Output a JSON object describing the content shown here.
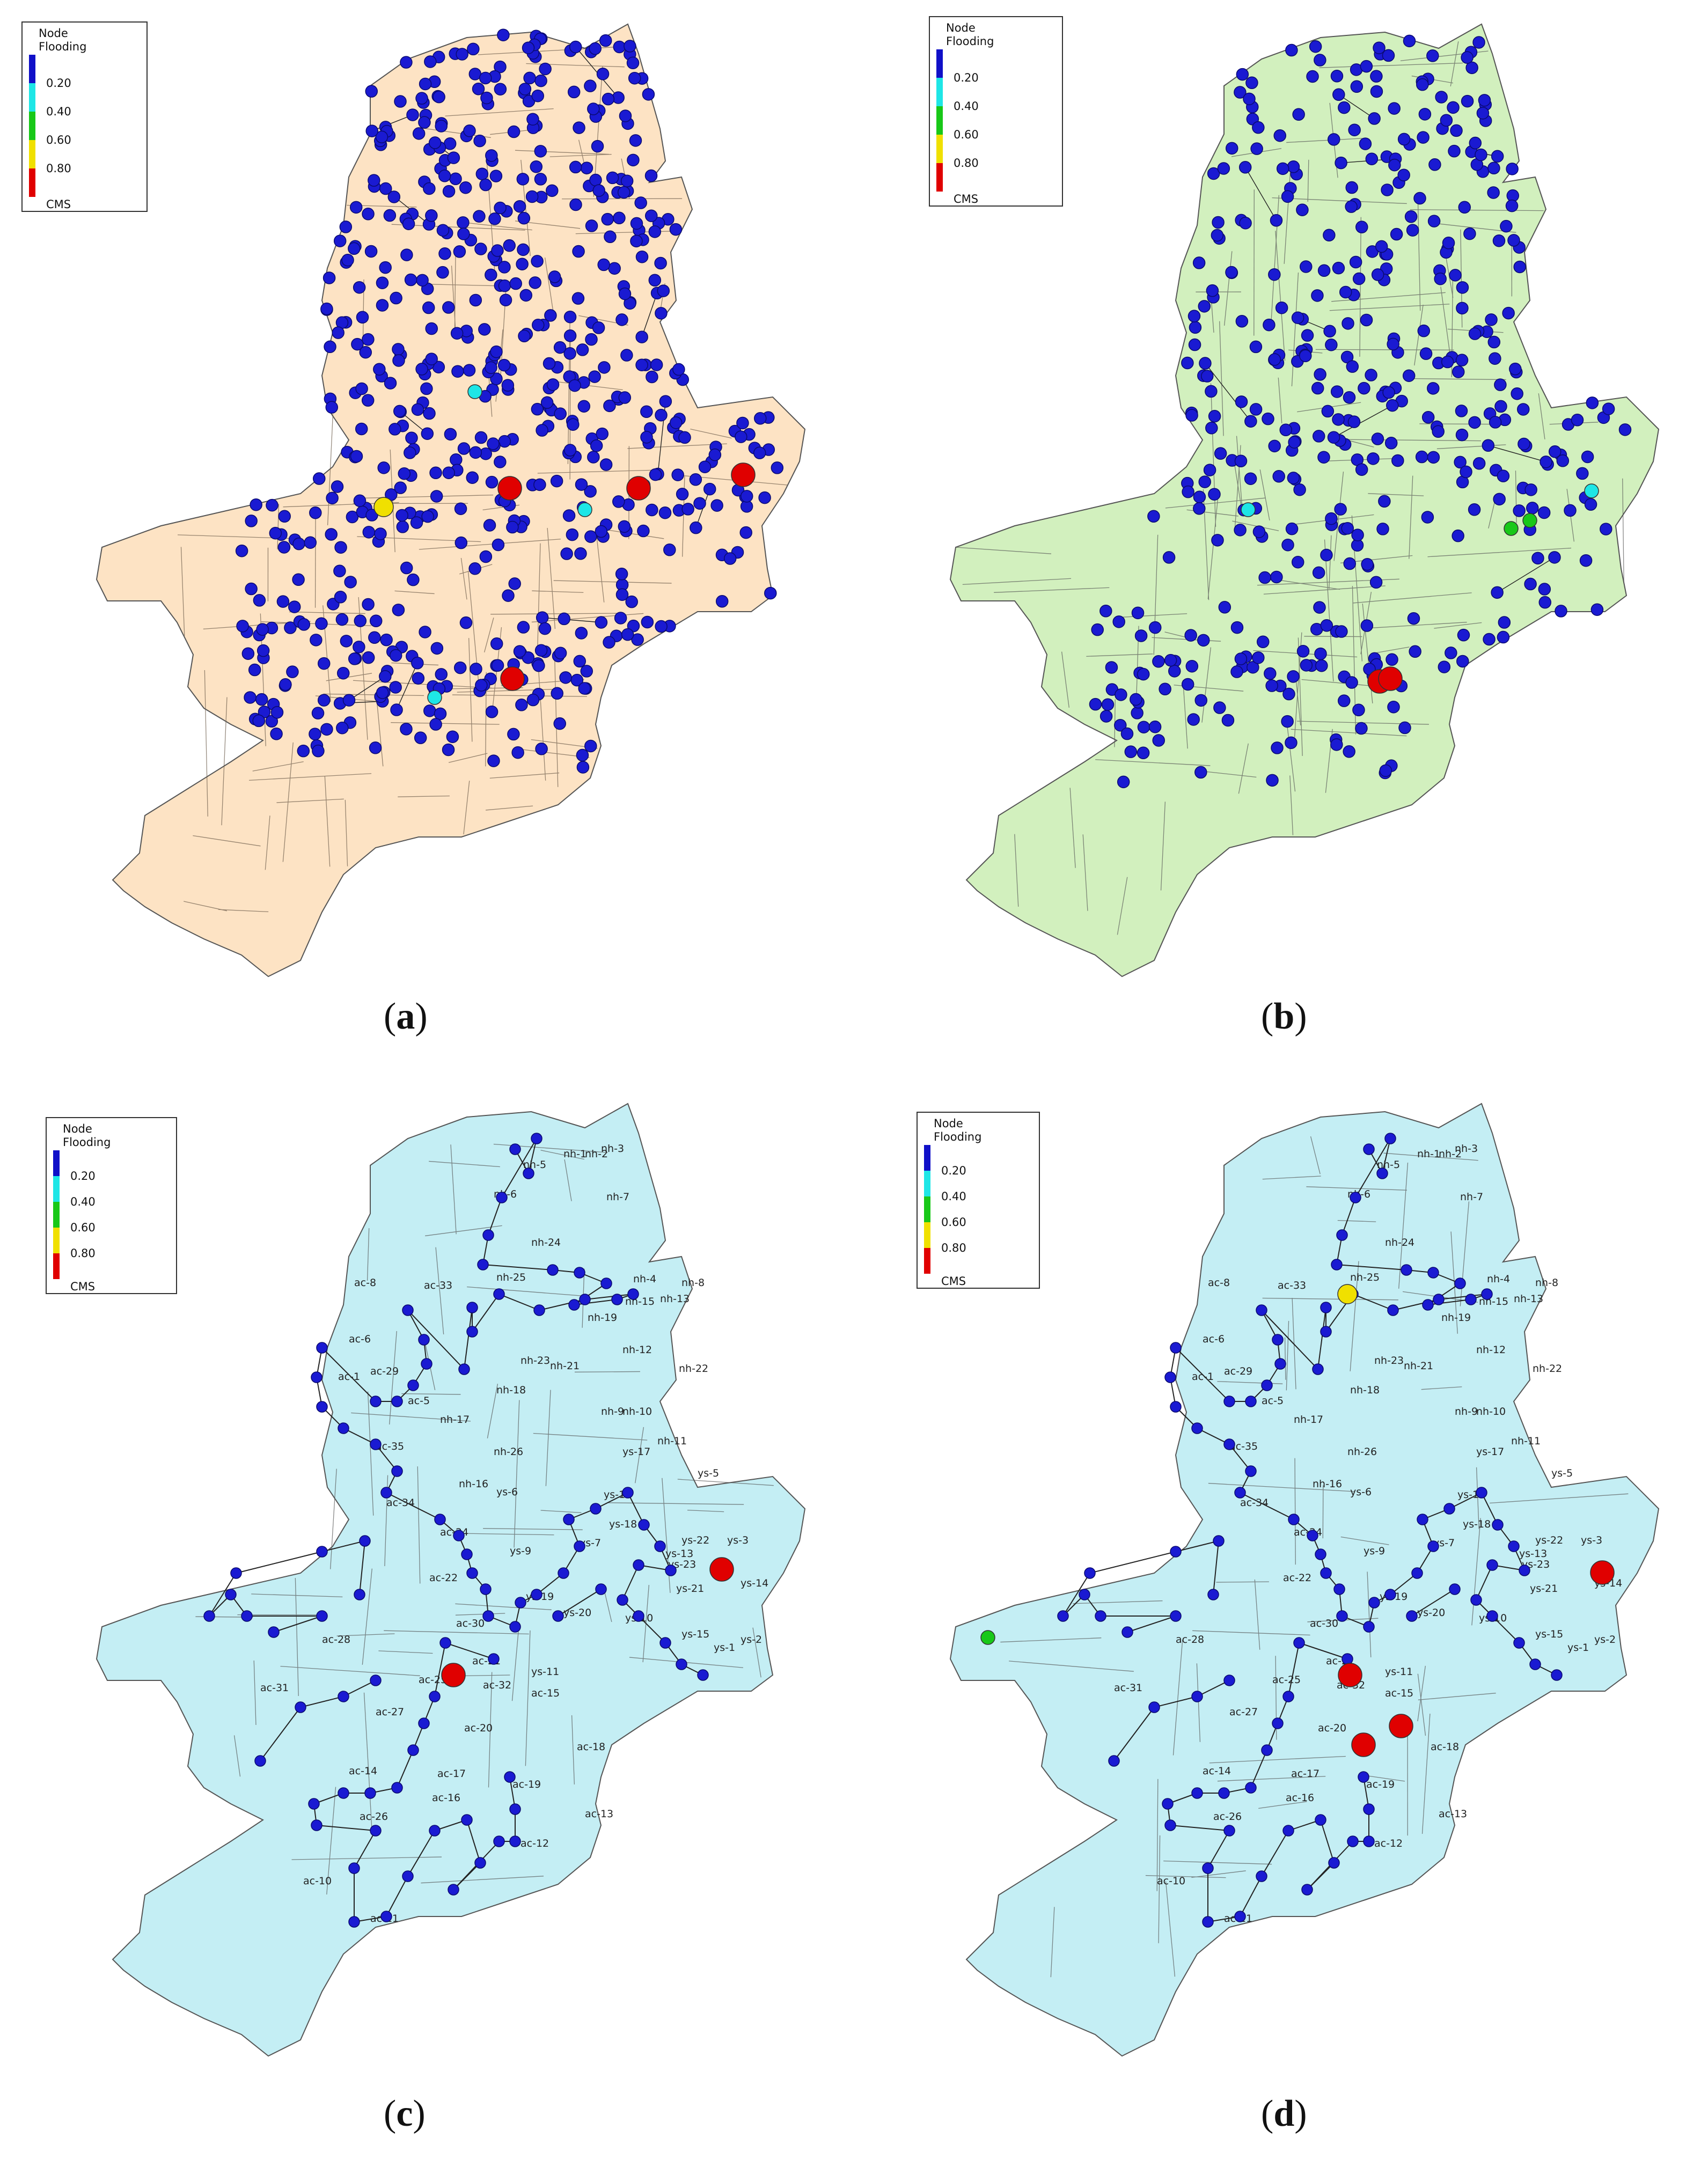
{
  "legend": {
    "title_line1": "Node",
    "title_line2": "Flooding",
    "unit": "CMS",
    "items": [
      {
        "label": "0.20",
        "color": "#1010c8"
      },
      {
        "label": "0.40",
        "color": "#1ee6e6"
      },
      {
        "label": "0.60",
        "color": "#18c818"
      },
      {
        "label": "0.80",
        "color": "#f0e000"
      },
      {
        "label": "",
        "color": "#e00000"
      }
    ],
    "bottom_color": "#e00000"
  },
  "colors": {
    "fill_a": "#fde3c4",
    "fill_b": "#d2f0be",
    "fill_c": "#c4eef4",
    "fill_d": "#c4eef4",
    "node": "#1a1ad2",
    "outline": "#555555"
  },
  "panels": [
    {
      "id": "a",
      "caption_letter": "a",
      "flood_nodes": [
        {
          "level": "yellow"
        },
        {
          "level": "cyan"
        },
        {
          "level": "cyan"
        },
        {
          "level": "cyan"
        },
        {
          "level": "red"
        },
        {
          "level": "red"
        },
        {
          "level": "red"
        },
        {
          "level": "red"
        }
      ]
    },
    {
      "id": "b",
      "caption_letter": "b",
      "flood_nodes": [
        {
          "level": "cyan"
        },
        {
          "level": "cyan"
        },
        {
          "level": "green"
        },
        {
          "level": "green"
        },
        {
          "level": "red"
        },
        {
          "level": "red"
        }
      ]
    },
    {
      "id": "c",
      "caption_letter": "c",
      "flood_nodes": [
        {
          "level": "red"
        },
        {
          "level": "red"
        }
      ]
    },
    {
      "id": "d",
      "caption_letter": "d",
      "flood_nodes": [
        {
          "level": "yellow"
        },
        {
          "level": "green"
        },
        {
          "level": "red"
        },
        {
          "level": "red"
        },
        {
          "level": "red"
        },
        {
          "level": "red"
        }
      ]
    }
  ],
  "subcatchments": [
    "nh-1",
    "nh-2",
    "nh-3",
    "nh-5",
    "nh-6",
    "nh-7",
    "nh-24",
    "nh-25",
    "nh-4",
    "nh-8",
    "nh-15",
    "nh-13",
    "nh-19",
    "nh-23",
    "nh-21",
    "nh-22",
    "nh-18",
    "nh-17",
    "nh-26",
    "nh-9",
    "nh-10",
    "nh-11",
    "nh-16",
    "nh-12",
    "ac-8",
    "ac-33",
    "ac-6",
    "ac-29",
    "ac-1",
    "ac-7",
    "ac-5",
    "ac-2",
    "ac-3",
    "ac-35",
    "ac-34",
    "ac-24",
    "ac-4",
    "ac-22",
    "ac-30",
    "ac-28",
    "ac-21",
    "ac-31",
    "ac-32",
    "ac-25",
    "ac-27",
    "ac-15",
    "ac-20",
    "ac-18",
    "ac-14",
    "ac-17",
    "ac-16",
    "ac-19",
    "ac-26",
    "ac-13",
    "ac-12",
    "ac-10",
    "ac-11",
    "ys-17",
    "ys-5",
    "ys-6",
    "ys-16",
    "ys-18",
    "ys-7",
    "ys-22",
    "ys-3",
    "ys-9",
    "ys-23",
    "ys-19",
    "ys-21",
    "ys-14",
    "ys-20",
    "ys-10",
    "ys-11",
    "ys-15",
    "ys-2",
    "ys-1",
    "ys-13"
  ]
}
